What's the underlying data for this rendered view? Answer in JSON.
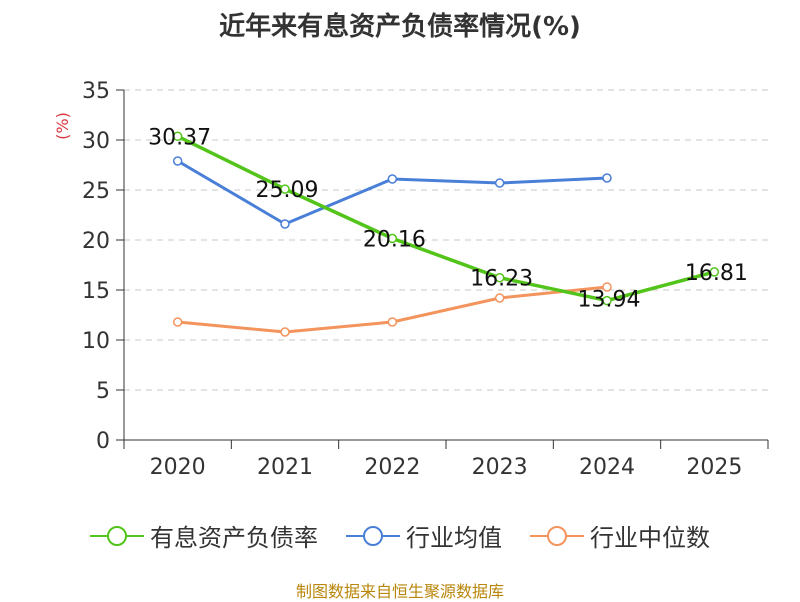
{
  "chart_data": {
    "type": "line",
    "title": "近年来有息资产负债率情况(%)",
    "ylabel": "(%)",
    "xlabel": "",
    "categories": [
      "2020",
      "2021",
      "2022",
      "2023",
      "2024",
      "2025"
    ],
    "ylim": [
      0,
      35
    ],
    "yticks": [
      0,
      5,
      10,
      15,
      20,
      25,
      30,
      35
    ],
    "grid": true,
    "legend_position": "bottom",
    "series": [
      {
        "name": "有息资产负债率",
        "color": "#52c41a",
        "values": [
          30.37,
          25.09,
          20.16,
          16.23,
          13.94,
          16.81
        ],
        "labels": [
          "30.37",
          "25.09",
          "20.16",
          "16.23",
          "13.94",
          "16.81"
        ]
      },
      {
        "name": "行业均值",
        "color": "#4a7fd8",
        "values": [
          27.9,
          21.6,
          26.1,
          25.7,
          26.2,
          null
        ]
      },
      {
        "name": "行业中位数",
        "color": "#f4945d",
        "values": [
          11.8,
          10.8,
          11.8,
          14.2,
          15.3,
          null
        ]
      }
    ]
  },
  "footer": {
    "source": "制图数据来自恒生聚源数据库"
  }
}
